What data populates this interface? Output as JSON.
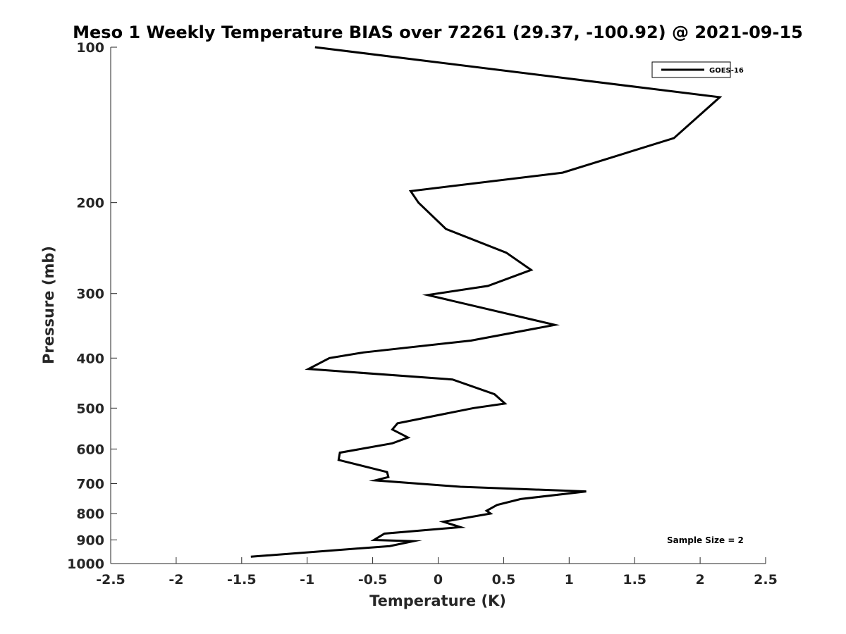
{
  "chart_data": {
    "type": "line",
    "title": "Meso 1 Weekly Temperature BIAS over 72261 (29.37, -100.92) @ 2021-09-15",
    "xlabel": "Temperature (K)",
    "ylabel": "Pressure (mb)",
    "xlim": [
      -2.5,
      2.5
    ],
    "ylim": [
      100,
      1000
    ],
    "y_scale": "log",
    "y_reversed": true,
    "x_ticks": [
      "-2.5",
      "-2",
      "-1.5",
      "-1",
      "-0.5",
      "0",
      "0.5",
      "1",
      "1.5",
      "2",
      "2.5"
    ],
    "y_ticks": [
      "100",
      "200",
      "300",
      "400",
      "500",
      "600",
      "700",
      "800",
      "900",
      "1000"
    ],
    "grid": false,
    "legend_position": "top-right",
    "annotation": "Sample Size = 2",
    "series": [
      {
        "name": "GOES-16",
        "color": "#000000",
        "x": [
          -0.94,
          2.15,
          1.8,
          0.95,
          -0.21,
          -0.15,
          0.06,
          0.52,
          0.71,
          0.38,
          -0.08,
          0.89,
          0.25,
          -0.57,
          -0.83,
          -0.99,
          0.11,
          0.43,
          0.51,
          0.27,
          -0.31,
          -0.35,
          -0.23,
          -0.35,
          -0.75,
          -0.76,
          -0.39,
          -0.38,
          -0.48,
          0.17,
          1.13,
          0.63,
          0.45,
          0.37,
          0.4,
          0.04,
          0.17,
          -0.41,
          -0.49,
          -0.19,
          -0.37,
          -1.43
        ],
        "y": [
          100,
          125,
          150,
          175,
          190,
          200,
          225,
          250,
          270,
          290,
          302,
          345,
          370,
          390,
          400,
          420,
          440,
          470,
          490,
          500,
          535,
          550,
          570,
          585,
          610,
          630,
          665,
          680,
          690,
          710,
          725,
          750,
          770,
          790,
          800,
          830,
          850,
          875,
          900,
          905,
          925,
          970
        ]
      }
    ]
  }
}
